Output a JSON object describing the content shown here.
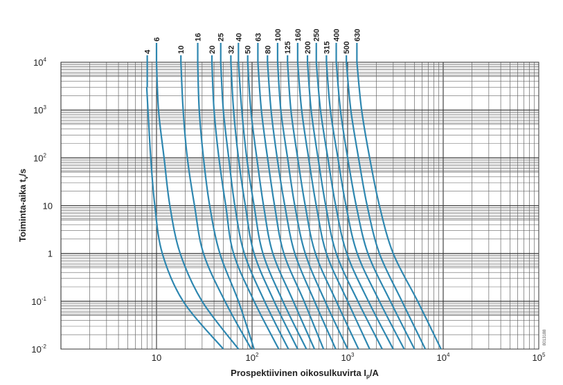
{
  "chart_data": {
    "type": "line",
    "xscale": "log",
    "yscale": "log",
    "xlim": [
      1,
      100000
    ],
    "ylim": [
      0.01,
      10000
    ],
    "grid": true,
    "xlabel_base": "Prospektiivinen oikosulkuvirta I",
    "xlabel_sub": "p",
    "xlabel_unit": "/A",
    "ylabel_base": "Toiminta-aika t",
    "ylabel_sub": "v",
    "ylabel_unit": "/s",
    "xticks": [
      {
        "value": 10,
        "base": "10",
        "exp": ""
      },
      {
        "value": 100,
        "base": "10",
        "exp": "2"
      },
      {
        "value": 1000,
        "base": "10",
        "exp": "3"
      },
      {
        "value": 10000,
        "base": "10",
        "exp": "4"
      },
      {
        "value": 100000,
        "base": "10",
        "exp": "5"
      }
    ],
    "yticks": [
      {
        "value": 10000,
        "base": "10",
        "exp": "4"
      },
      {
        "value": 1000,
        "base": "10",
        "exp": "3"
      },
      {
        "value": 100,
        "base": "10",
        "exp": "2"
      },
      {
        "value": 10,
        "base": "10",
        "exp": ""
      },
      {
        "value": 1,
        "base": "1",
        "exp": ""
      },
      {
        "value": 0.1,
        "base": "10",
        "exp": "-1"
      },
      {
        "value": 0.01,
        "base": "10",
        "exp": "-2"
      }
    ],
    "series_color": "#2e87b0",
    "series": [
      {
        "name": "4",
        "top_x": 8,
        "points": [
          [
            7.9,
            3000
          ],
          [
            8.7,
            100
          ],
          [
            9.6,
            10
          ],
          [
            11.5,
            1
          ],
          [
            19,
            0.1
          ],
          [
            50,
            0.01
          ]
        ]
      },
      {
        "name": "6",
        "top_x": 10,
        "points": [
          [
            10,
            10000
          ],
          [
            10.5,
            1000
          ],
          [
            12,
            100
          ],
          [
            13.8,
            10
          ],
          [
            17.7,
            1
          ],
          [
            30,
            0.1
          ],
          [
            72,
            0.01
          ]
        ]
      },
      {
        "name": "10",
        "top_x": 18,
        "points": [
          [
            18,
            10000
          ],
          [
            19,
            1000
          ],
          [
            21,
            100
          ],
          [
            25,
            10
          ],
          [
            31,
            1
          ],
          [
            52,
            0.1
          ],
          [
            98,
            0.01
          ]
        ]
      },
      {
        "name": "16",
        "top_x": 27,
        "points": [
          [
            27,
            10000
          ],
          [
            28,
            1000
          ],
          [
            31,
            100
          ],
          [
            36,
            10
          ],
          [
            46,
            1
          ],
          [
            72,
            0.1
          ],
          [
            105,
            0.01
          ]
        ]
      },
      {
        "name": "20",
        "top_x": 38,
        "points": [
          [
            38,
            10000
          ],
          [
            40,
            1000
          ],
          [
            45,
            100
          ],
          [
            53,
            10
          ],
          [
            64,
            1
          ],
          [
            105,
            0.1
          ],
          [
            190,
            0.01
          ]
        ]
      },
      {
        "name": "25",
        "top_x": 47,
        "points": [
          [
            47,
            10000
          ],
          [
            50,
            1000
          ],
          [
            57,
            100
          ],
          [
            66,
            10
          ],
          [
            83,
            1
          ],
          [
            135,
            0.1
          ],
          [
            240,
            0.01
          ]
        ]
      },
      {
        "name": "32",
        "top_x": 60,
        "points": [
          [
            60,
            10000
          ],
          [
            64,
            1000
          ],
          [
            72,
            100
          ],
          [
            85,
            10
          ],
          [
            105,
            1
          ],
          [
            170,
            0.1
          ],
          [
            300,
            0.01
          ]
        ]
      },
      {
        "name": "40",
        "top_x": 72,
        "points": [
          [
            72,
            10000
          ],
          [
            78,
            1000
          ],
          [
            88,
            100
          ],
          [
            105,
            10
          ],
          [
            130,
            1
          ],
          [
            210,
            0.1
          ],
          [
            370,
            0.01
          ]
        ]
      },
      {
        "name": "50",
        "top_x": 90,
        "points": [
          [
            90,
            10000
          ],
          [
            97,
            1000
          ],
          [
            112,
            100
          ],
          [
            132,
            10
          ],
          [
            165,
            1
          ],
          [
            270,
            0.1
          ],
          [
            450,
            0.01
          ]
        ]
      },
      {
        "name": "63",
        "top_x": 115,
        "points": [
          [
            115,
            10000
          ],
          [
            125,
            1000
          ],
          [
            145,
            100
          ],
          [
            172,
            10
          ],
          [
            215,
            1
          ],
          [
            350,
            0.1
          ],
          [
            560,
            0.01
          ]
        ]
      },
      {
        "name": "80",
        "top_x": 145,
        "points": [
          [
            145,
            10000
          ],
          [
            158,
            1000
          ],
          [
            183,
            100
          ],
          [
            220,
            10
          ],
          [
            280,
            1
          ],
          [
            450,
            0.1
          ],
          [
            750,
            0.01
          ]
        ]
      },
      {
        "name": "100",
        "top_x": 185,
        "points": [
          [
            185,
            10000
          ],
          [
            200,
            1000
          ],
          [
            235,
            100
          ],
          [
            280,
            10
          ],
          [
            360,
            1
          ],
          [
            580,
            0.1
          ],
          [
            1000,
            0.01
          ]
        ]
      },
      {
        "name": "125",
        "top_x": 235,
        "points": [
          [
            235,
            10000
          ],
          [
            255,
            1000
          ],
          [
            300,
            100
          ],
          [
            360,
            10
          ],
          [
            460,
            1
          ],
          [
            760,
            0.1
          ],
          [
            1300,
            0.01
          ]
        ]
      },
      {
        "name": "160",
        "top_x": 300,
        "points": [
          [
            300,
            10000
          ],
          [
            330,
            1000
          ],
          [
            390,
            100
          ],
          [
            470,
            10
          ],
          [
            600,
            1
          ],
          [
            1000,
            0.1
          ],
          [
            1700,
            0.01
          ]
        ]
      },
      {
        "name": "200",
        "top_x": 380,
        "points": [
          [
            380,
            10000
          ],
          [
            415,
            1000
          ],
          [
            490,
            100
          ],
          [
            590,
            10
          ],
          [
            760,
            1
          ],
          [
            1280,
            0.1
          ],
          [
            2300,
            0.01
          ]
        ]
      },
      {
        "name": "250",
        "top_x": 470,
        "points": [
          [
            470,
            10000
          ],
          [
            520,
            1000
          ],
          [
            620,
            100
          ],
          [
            750,
            10
          ],
          [
            980,
            1
          ],
          [
            1650,
            0.1
          ],
          [
            3000,
            0.01
          ]
        ]
      },
      {
        "name": "315",
        "top_x": 600,
        "points": [
          [
            600,
            10000
          ],
          [
            660,
            1000
          ],
          [
            790,
            100
          ],
          [
            960,
            10
          ],
          [
            1260,
            1
          ],
          [
            2150,
            0.1
          ],
          [
            3900,
            0.01
          ]
        ]
      },
      {
        "name": "400",
        "top_x": 760,
        "points": [
          [
            760,
            10000
          ],
          [
            840,
            1000
          ],
          [
            1000,
            100
          ],
          [
            1230,
            10
          ],
          [
            1630,
            1
          ],
          [
            2800,
            0.1
          ],
          [
            5000,
            0.01
          ]
        ]
      },
      {
        "name": "500",
        "top_x": 970,
        "points": [
          [
            970,
            10000
          ],
          [
            1080,
            1000
          ],
          [
            1300,
            100
          ],
          [
            1600,
            10
          ],
          [
            2150,
            1
          ],
          [
            3700,
            0.1
          ],
          [
            6500,
            0.01
          ]
        ]
      },
      {
        "name": "630",
        "top_x": 1250,
        "points": [
          [
            1250,
            10000
          ],
          [
            1400,
            1000
          ],
          [
            1700,
            100
          ],
          [
            2150,
            10
          ],
          [
            3000,
            1
          ],
          [
            5400,
            0.1
          ],
          [
            9500,
            0.01
          ]
        ]
      }
    ],
    "annotation": "8013188"
  }
}
